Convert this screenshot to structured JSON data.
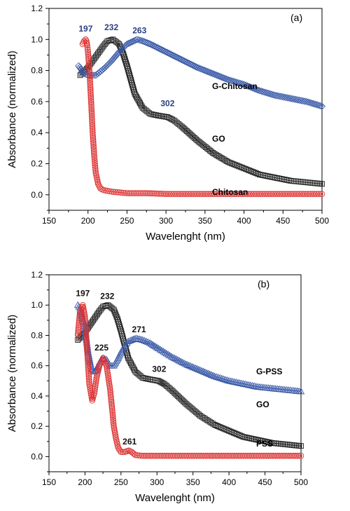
{
  "chart_data": [
    {
      "type": "scatter",
      "panel_label": "(a)",
      "xlabel": "Wavelenght (nm)",
      "ylabel": "Absorbance (normalized)",
      "xlim": [
        150,
        500
      ],
      "ylim": [
        -0.1,
        1.2
      ],
      "xticks": [
        "150",
        "200",
        "250",
        "300",
        "350",
        "400",
        "450",
        "500"
      ],
      "yticks": [
        "0.0",
        "0.2",
        "0.4",
        "0.6",
        "0.8",
        "1.0",
        "1.2"
      ],
      "grid": false,
      "series": [
        {
          "name": "GO",
          "label": "GO",
          "marker": "square",
          "color": "#222222",
          "x": [
            190,
            200,
            210,
            220,
            225,
            232,
            240,
            245,
            250,
            255,
            260,
            270,
            280,
            290,
            302,
            310,
            320,
            340,
            360,
            380,
            400,
            420,
            440,
            460,
            480,
            500
          ],
          "y": [
            0.77,
            0.82,
            0.89,
            0.96,
            0.99,
            1.0,
            0.97,
            0.91,
            0.83,
            0.74,
            0.65,
            0.56,
            0.52,
            0.51,
            0.5,
            0.48,
            0.44,
            0.35,
            0.27,
            0.21,
            0.17,
            0.13,
            0.11,
            0.09,
            0.08,
            0.07
          ]
        },
        {
          "name": "G-Chitosan",
          "label": "G-Chitosan",
          "marker": "diamond",
          "color": "#3a5aa8",
          "x": [
            188,
            195,
            200,
            210,
            220,
            230,
            240,
            250,
            263,
            270,
            280,
            300,
            320,
            340,
            360,
            380,
            400,
            420,
            440,
            460,
            480,
            500
          ],
          "y": [
            0.83,
            0.78,
            0.77,
            0.77,
            0.81,
            0.86,
            0.92,
            0.97,
            1.0,
            0.99,
            0.97,
            0.92,
            0.87,
            0.82,
            0.78,
            0.74,
            0.71,
            0.67,
            0.64,
            0.62,
            0.6,
            0.57
          ]
        },
        {
          "name": "Chitosan",
          "label": "Chitosan",
          "marker": "circle",
          "color": "#dd3333",
          "x": [
            193,
            195,
            197,
            198,
            199,
            200,
            202,
            204,
            206,
            208,
            210,
            213,
            216,
            220,
            225,
            230,
            240,
            250,
            275,
            300,
            350,
            400,
            450,
            500
          ],
          "y": [
            0.97,
            0.99,
            1.0,
            0.99,
            0.96,
            0.92,
            0.79,
            0.6,
            0.4,
            0.25,
            0.14,
            0.07,
            0.04,
            0.03,
            0.025,
            0.02,
            0.015,
            0.01,
            0.01,
            0.005,
            0.005,
            0.005,
            0.005,
            0.005
          ]
        }
      ],
      "annotations": [
        {
          "text": "197",
          "x": 197,
          "y": 1.05,
          "color": "#2a3f80"
        },
        {
          "text": "232",
          "x": 230,
          "y": 1.06,
          "color": "#2a3f80"
        },
        {
          "text": "263",
          "x": 266,
          "y": 1.04,
          "color": "#2a3f80"
        },
        {
          "text": "302",
          "x": 302,
          "y": 0.57,
          "color": "#2a3f80"
        }
      ]
    },
    {
      "type": "scatter",
      "panel_label": "(b)",
      "xlabel": "Wavelenght (nm)",
      "ylabel": "Absorbance (normalized)",
      "xlim": [
        150,
        500
      ],
      "ylim": [
        -0.1,
        1.2
      ],
      "xticks": [
        "150",
        "200",
        "250",
        "300",
        "350",
        "400",
        "450",
        "500"
      ],
      "yticks": [
        "0.0",
        "0.2",
        "0.4",
        "0.6",
        "0.8",
        "1.0",
        "1.2"
      ],
      "grid": false,
      "series": [
        {
          "name": "GO",
          "label": "GO",
          "marker": "square",
          "color": "#222222",
          "x": [
            190,
            200,
            210,
            220,
            225,
            232,
            240,
            245,
            250,
            255,
            260,
            270,
            280,
            290,
            302,
            310,
            320,
            340,
            360,
            380,
            400,
            420,
            440,
            460,
            480,
            500
          ],
          "y": [
            0.77,
            0.82,
            0.89,
            0.96,
            0.99,
            1.0,
            0.97,
            0.91,
            0.83,
            0.74,
            0.65,
            0.56,
            0.52,
            0.51,
            0.5,
            0.48,
            0.44,
            0.35,
            0.27,
            0.21,
            0.17,
            0.13,
            0.11,
            0.09,
            0.08,
            0.07
          ]
        },
        {
          "name": "G-PSS",
          "label": "G-PSS",
          "marker": "triangle",
          "color": "#3a5aa8",
          "x": [
            190,
            193,
            196,
            200,
            204,
            208,
            212,
            216,
            220,
            225,
            230,
            235,
            240,
            245,
            250,
            255,
            260,
            265,
            271,
            280,
            290,
            300,
            320,
            340,
            360,
            380,
            400,
            420,
            440,
            460,
            480,
            500
          ],
          "y": [
            1.0,
            0.98,
            0.92,
            0.84,
            0.7,
            0.6,
            0.56,
            0.57,
            0.62,
            0.65,
            0.64,
            0.6,
            0.6,
            0.64,
            0.69,
            0.73,
            0.76,
            0.77,
            0.78,
            0.77,
            0.75,
            0.72,
            0.66,
            0.61,
            0.57,
            0.53,
            0.5,
            0.48,
            0.46,
            0.45,
            0.44,
            0.43
          ]
        },
        {
          "name": "PSS",
          "label": "PSS",
          "marker": "circle",
          "color": "#dd3333",
          "x": [
            190,
            193,
            197,
            200,
            203,
            206,
            210,
            213,
            216,
            220,
            225,
            230,
            235,
            238,
            240,
            243,
            246,
            250,
            255,
            261,
            265,
            270,
            280,
            300,
            350,
            400,
            450,
            500
          ],
          "y": [
            0.8,
            0.95,
            1.0,
            0.92,
            0.7,
            0.48,
            0.37,
            0.42,
            0.52,
            0.6,
            0.65,
            0.6,
            0.44,
            0.3,
            0.2,
            0.12,
            0.06,
            0.03,
            0.03,
            0.04,
            0.03,
            0.01,
            0.005,
            0.005,
            0.005,
            0.005,
            0.005,
            0.005
          ]
        }
      ],
      "annotations": [
        {
          "text": "197",
          "x": 197,
          "y": 1.06,
          "color": "#111111"
        },
        {
          "text": "232",
          "x": 231,
          "y": 1.04,
          "color": "#111111"
        },
        {
          "text": "225",
          "x": 223,
          "y": 0.7,
          "color": "#111111"
        },
        {
          "text": "271",
          "x": 275,
          "y": 0.82,
          "color": "#111111"
        },
        {
          "text": "302",
          "x": 303,
          "y": 0.56,
          "color": "#111111"
        },
        {
          "text": "261",
          "x": 262,
          "y": 0.08,
          "color": "#111111"
        }
      ]
    }
  ]
}
